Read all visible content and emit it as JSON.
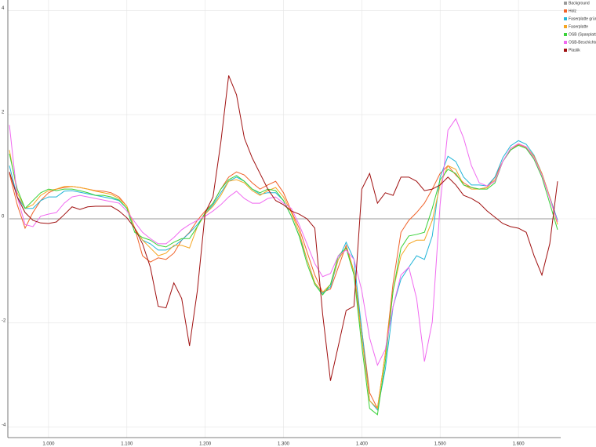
{
  "chart_data": {
    "type": "line",
    "x": [
      950,
      960,
      970,
      980,
      990,
      1000,
      1010,
      1020,
      1030,
      1040,
      1050,
      1060,
      1070,
      1080,
      1090,
      1100,
      1110,
      1120,
      1130,
      1140,
      1150,
      1160,
      1170,
      1180,
      1190,
      1200,
      1210,
      1220,
      1230,
      1240,
      1250,
      1260,
      1270,
      1280,
      1290,
      1300,
      1310,
      1320,
      1330,
      1340,
      1350,
      1360,
      1370,
      1380,
      1390,
      1400,
      1410,
      1420,
      1430,
      1440,
      1450,
      1460,
      1470,
      1480,
      1490,
      1500,
      1510,
      1520,
      1530,
      1540,
      1550,
      1560,
      1570,
      1580,
      1590,
      1600,
      1610,
      1620,
      1630,
      1640,
      1650
    ],
    "series": [
      {
        "name": "Background",
        "color": "#999999",
        "values": [
          0,
          0,
          0,
          0,
          0,
          0,
          0,
          0,
          0,
          0,
          0,
          0,
          0,
          0,
          0,
          0,
          0,
          0,
          0,
          0,
          0,
          0,
          0,
          0,
          0,
          0,
          0,
          0,
          0,
          0,
          0,
          0,
          0,
          0,
          0,
          0,
          0,
          0,
          0,
          0,
          0,
          0,
          0,
          0,
          0,
          0,
          0,
          0,
          0,
          0,
          0,
          0,
          0,
          0,
          0,
          0,
          0,
          0,
          0,
          0,
          0,
          0,
          0,
          0,
          0,
          0,
          0,
          0,
          0,
          0,
          0
        ]
      },
      {
        "name": "Holz",
        "color": "#f0622a",
        "values": [
          0.87,
          0.27,
          -0.18,
          0.12,
          0.35,
          0.5,
          0.57,
          0.6,
          0.62,
          0.6,
          0.57,
          0.54,
          0.53,
          0.5,
          0.42,
          0.24,
          -0.18,
          -0.71,
          -0.83,
          -0.75,
          -0.78,
          -0.66,
          -0.41,
          -0.26,
          -0.03,
          0.15,
          0.3,
          0.57,
          0.8,
          0.9,
          0.84,
          0.69,
          0.57,
          0.65,
          0.72,
          0.5,
          0.15,
          -0.18,
          -0.63,
          -1.08,
          -1.41,
          -1.35,
          -0.93,
          -0.51,
          -1.01,
          -2.14,
          -3.34,
          -3.64,
          -2.59,
          -1.23,
          -0.26,
          -0.03,
          0.12,
          0.3,
          0.57,
          0.87,
          1.02,
          0.84,
          0.69,
          0.6,
          0.57,
          0.6,
          0.8,
          1.1,
          1.32,
          1.43,
          1.37,
          1.17,
          0.87,
          0.42,
          -0.03
        ]
      },
      {
        "name": "Faserplatte grün",
        "color": "#22b5d8",
        "values": [
          1.02,
          0.42,
          0.2,
          0.2,
          0.35,
          0.42,
          0.42,
          0.53,
          0.54,
          0.51,
          0.48,
          0.45,
          0.42,
          0.39,
          0.35,
          0.2,
          -0.18,
          -0.41,
          -0.48,
          -0.6,
          -0.6,
          -0.53,
          -0.41,
          -0.27,
          -0.11,
          0.09,
          0.27,
          0.5,
          0.72,
          0.8,
          0.72,
          0.57,
          0.47,
          0.5,
          0.5,
          0.35,
          0.05,
          -0.33,
          -0.78,
          -1.23,
          -1.43,
          -1.31,
          -0.78,
          -0.45,
          -0.78,
          -2.14,
          -3.49,
          -3.67,
          -2.89,
          -1.68,
          -1.16,
          -0.93,
          -0.71,
          -0.78,
          -0.33,
          0.8,
          1.2,
          1.1,
          0.8,
          0.65,
          0.65,
          0.63,
          0.8,
          1.17,
          1.4,
          1.5,
          1.43,
          1.22,
          0.87,
          0.42,
          -0.03
        ]
      },
      {
        "name": "Faserplatte",
        "color": "#f5a623",
        "values": [
          1.32,
          0.5,
          0.2,
          0.27,
          0.45,
          0.54,
          0.57,
          0.62,
          0.62,
          0.6,
          0.57,
          0.53,
          0.5,
          0.47,
          0.39,
          0.24,
          -0.18,
          -0.41,
          -0.56,
          -0.71,
          -0.66,
          -0.51,
          -0.51,
          -0.56,
          -0.15,
          0.09,
          0.24,
          0.45,
          0.72,
          0.75,
          0.69,
          0.54,
          0.45,
          0.54,
          0.6,
          0.42,
          0.12,
          -0.26,
          -0.78,
          -1.23,
          -1.41,
          -1.26,
          -0.78,
          -0.56,
          -1.01,
          -2.29,
          -3.49,
          -3.64,
          -2.59,
          -1.38,
          -0.71,
          -0.48,
          -0.41,
          -0.41,
          -0.03,
          0.65,
          1.02,
          0.95,
          0.65,
          0.57,
          0.57,
          0.6,
          0.75,
          1.1,
          1.35,
          1.44,
          1.38,
          1.2,
          0.87,
          0.42,
          -0.11
        ]
      },
      {
        "name": "OSB (Spanplatte)",
        "color": "#3ad23a",
        "values": [
          1.25,
          0.57,
          0.2,
          0.35,
          0.5,
          0.57,
          0.54,
          0.57,
          0.57,
          0.54,
          0.5,
          0.45,
          0.45,
          0.42,
          0.36,
          0.2,
          -0.26,
          -0.36,
          -0.41,
          -0.51,
          -0.54,
          -0.45,
          -0.38,
          -0.38,
          -0.15,
          0.12,
          0.3,
          0.57,
          0.75,
          0.83,
          0.72,
          0.57,
          0.5,
          0.57,
          0.54,
          0.35,
          0.05,
          -0.33,
          -0.86,
          -1.26,
          -1.46,
          -1.26,
          -0.71,
          -0.56,
          -1.08,
          -2.44,
          -3.64,
          -3.76,
          -2.74,
          -1.38,
          -0.56,
          -0.33,
          -0.3,
          -0.26,
          0.2,
          0.75,
          0.95,
          0.87,
          0.65,
          0.6,
          0.57,
          0.57,
          0.69,
          1.1,
          1.32,
          1.41,
          1.35,
          1.14,
          0.8,
          0.3,
          -0.21
        ]
      },
      {
        "name": "OSB-Beschichtung",
        "color": "#f06af0",
        "values": [
          1.8,
          0.42,
          -0.11,
          -0.15,
          0.05,
          0.09,
          0.12,
          0.3,
          0.42,
          0.45,
          0.42,
          0.39,
          0.36,
          0.33,
          0.3,
          0.15,
          -0.06,
          -0.26,
          -0.38,
          -0.48,
          -0.48,
          -0.36,
          -0.21,
          -0.11,
          -0.03,
          0.05,
          0.15,
          0.27,
          0.42,
          0.53,
          0.39,
          0.3,
          0.3,
          0.39,
          0.42,
          0.3,
          0.2,
          -0.11,
          -0.48,
          -0.86,
          -1.11,
          -1.05,
          -0.71,
          -0.6,
          -0.78,
          -1.38,
          -2.29,
          -2.81,
          -2.51,
          -1.68,
          -1.08,
          -0.93,
          -1.53,
          -2.74,
          -1.98,
          0.27,
          1.7,
          1.92,
          1.55,
          1.02,
          0.69,
          0.63,
          0.72,
          1.1,
          1.35,
          1.44,
          1.38,
          1.17,
          0.84,
          0.39,
          -0.06
        ]
      },
      {
        "name": "Plastik",
        "color": "#a01010",
        "values": [
          0.9,
          0.42,
          0.12,
          -0.03,
          -0.08,
          -0.09,
          -0.06,
          0.08,
          0.23,
          0.18,
          0.23,
          0.24,
          0.24,
          0.24,
          0.15,
          0.02,
          -0.18,
          -0.48,
          -0.93,
          -1.68,
          -1.71,
          -1.23,
          -1.53,
          -2.44,
          -1.38,
          0.12,
          0.42,
          1.47,
          2.75,
          2.38,
          1.55,
          1.17,
          0.87,
          0.57,
          0.35,
          0.27,
          0.15,
          0.09,
          0,
          -0.18,
          -1.83,
          -3.11,
          -2.44,
          -1.76,
          -1.68,
          0.57,
          0.87,
          0.3,
          0.5,
          0.45,
          0.8,
          0.8,
          0.72,
          0.54,
          0.57,
          0.65,
          0.8,
          0.65,
          0.45,
          0.39,
          0.3,
          0.15,
          0.03,
          -0.09,
          -0.15,
          -0.18,
          -0.26,
          -0.71,
          -1.08,
          -0.48,
          0.72
        ]
      }
    ],
    "xlim": [
      948,
      1654
    ],
    "xticks": [
      {
        "value": 1000,
        "label": "1.000"
      },
      {
        "value": 1100,
        "label": "1.100"
      },
      {
        "value": 1200,
        "label": "1.200"
      },
      {
        "value": 1300,
        "label": "1.300"
      },
      {
        "value": 1400,
        "label": "1.400"
      },
      {
        "value": 1500,
        "label": "1.500"
      },
      {
        "value": 1600,
        "label": "1.600"
      }
    ],
    "ylim": [
      -4.2,
      4.2
    ],
    "yticks": [
      -4,
      -2,
      0,
      2,
      4
    ],
    "grid": true,
    "legend": "top-right"
  }
}
